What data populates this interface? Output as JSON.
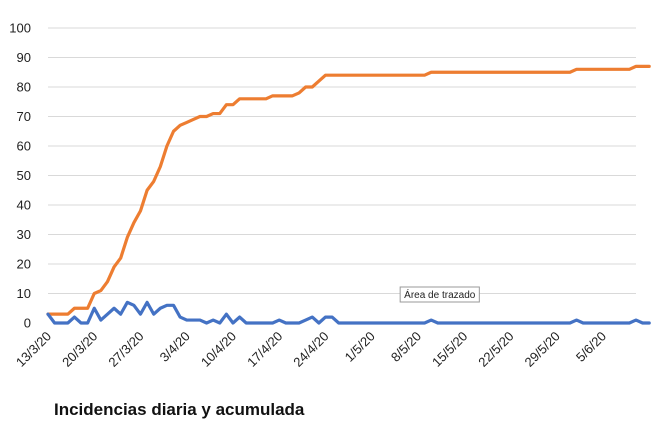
{
  "chart_data": {
    "type": "line",
    "title": "Incidencias diaria y acumulada",
    "xlabel": "",
    "ylabel": "",
    "ylim": [
      0,
      100
    ],
    "yticks": [
      0,
      10,
      20,
      30,
      40,
      50,
      60,
      70,
      80,
      90,
      100
    ],
    "grid": true,
    "legend": "none",
    "tooltip_text": "Área de trazado",
    "tooltip_anchor_date": "5/5/20",
    "x_tick_labels": [
      "13/3/20",
      "20/3/20",
      "27/3/20",
      "3/4/20",
      "10/4/20",
      "17/4/20",
      "24/4/20",
      "1/5/20",
      "8/5/20",
      "15/5/20",
      "22/5/20",
      "29/5/20",
      "5/6/20"
    ],
    "x_start": "13/3/20",
    "x_end": "10/6/20",
    "series": [
      {
        "color": "#ED7D31",
        "values": [
          3,
          3,
          3,
          3,
          5,
          5,
          5,
          10,
          11,
          14,
          19,
          22,
          29,
          34,
          38,
          45,
          48,
          53,
          60,
          65,
          67,
          68,
          69,
          70,
          70,
          71,
          71,
          74,
          74,
          76,
          76,
          76,
          76,
          76,
          77,
          77,
          77,
          77,
          78,
          80,
          80,
          82,
          84,
          84,
          84,
          84,
          84,
          84,
          84,
          84,
          84,
          84,
          84,
          84,
          84,
          84,
          84,
          84,
          85,
          85,
          85,
          85,
          85,
          85,
          85,
          85,
          85,
          85,
          85,
          85,
          85,
          85,
          85,
          85,
          85,
          85,
          85,
          85,
          85,
          85,
          86,
          86,
          86,
          86,
          86,
          86,
          86,
          86,
          86,
          87,
          87,
          87
        ]
      },
      {
        "color": "#4472C4",
        "values": [
          3,
          0,
          0,
          0,
          2,
          0,
          0,
          5,
          1,
          3,
          5,
          3,
          7,
          6,
          3,
          7,
          3,
          5,
          6,
          6,
          2,
          1,
          1,
          1,
          0,
          1,
          0,
          3,
          0,
          2,
          0,
          0,
          0,
          0,
          0,
          1,
          0,
          0,
          0,
          1,
          2,
          0,
          2,
          2,
          0,
          0,
          0,
          0,
          0,
          0,
          0,
          0,
          0,
          0,
          0,
          0,
          0,
          0,
          1,
          0,
          0,
          0,
          0,
          0,
          0,
          0,
          0,
          0,
          0,
          0,
          0,
          0,
          0,
          0,
          0,
          0,
          0,
          0,
          0,
          0,
          1,
          0,
          0,
          0,
          0,
          0,
          0,
          0,
          0,
          1,
          0,
          0
        ]
      }
    ]
  }
}
